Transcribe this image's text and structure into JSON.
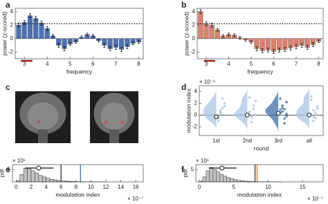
{
  "chart_data": [
    {
      "type": "bar",
      "panel_label": "a",
      "x": [
        2.75,
        3.0,
        3.25,
        3.5,
        3.75,
        4.0,
        4.25,
        4.5,
        4.75,
        5.0,
        5.25,
        5.5,
        5.75,
        6.0,
        6.25,
        6.5,
        6.75,
        7.0,
        7.25,
        7.5,
        7.75,
        8.0
      ],
      "values": [
        2.0,
        2.4,
        3.4,
        3.0,
        2.3,
        1.5,
        0.4,
        -1.0,
        -1.5,
        -0.8,
        -0.5,
        0.2,
        0.6,
        0.4,
        -0.3,
        -1.0,
        -1.5,
        -1.3,
        -1.6,
        -1.2,
        -0.7,
        -0.5
      ],
      "errors": [
        0.3,
        0.3,
        0.3,
        0.3,
        0.3,
        0.3,
        0.2,
        0.3,
        0.3,
        0.2,
        0.2,
        0.2,
        0.2,
        0.2,
        0.2,
        0.3,
        0.3,
        0.3,
        0.3,
        0.3,
        0.2,
        0.2
      ],
      "color": "#4a72b8",
      "xlim": [
        2.6,
        8.2
      ],
      "ylim": [
        -3,
        4.5
      ],
      "xticks": [
        3,
        4,
        5,
        6,
        7,
        8
      ],
      "yticks": [
        -2,
        0,
        2,
        4
      ],
      "xlabel": "frequency",
      "ylabel": "power (z-scored)",
      "threshold": 2.2,
      "sig_range": [
        2.85,
        3.35
      ],
      "sig_color": "#9b1c1c"
    },
    {
      "type": "bar",
      "panel_label": "b",
      "x": [
        2.75,
        3.0,
        3.25,
        3.5,
        3.75,
        4.0,
        4.25,
        4.5,
        4.75,
        5.0,
        5.25,
        5.5,
        5.75,
        6.0,
        6.25,
        6.5,
        6.75,
        7.0,
        7.25,
        7.5,
        7.75,
        8.0
      ],
      "values": [
        4.0,
        2.2,
        2.0,
        1.3,
        0.4,
        0.6,
        0.5,
        0.1,
        -0.2,
        -0.5,
        -1.5,
        -1.8,
        -1.7,
        -1.9,
        -1.7,
        -1.6,
        -1.4,
        -1.2,
        -1.0,
        -1.3,
        -0.9,
        -0.4
      ],
      "errors": [
        0.3,
        0.3,
        0.3,
        0.2,
        0.2,
        0.2,
        0.2,
        0.2,
        0.2,
        0.2,
        0.3,
        0.3,
        0.3,
        0.3,
        0.3,
        0.3,
        0.3,
        0.3,
        0.3,
        0.3,
        0.3,
        0.2
      ],
      "color": "#e2806a",
      "xlim": [
        2.6,
        8.2
      ],
      "ylim": [
        -3,
        4.5
      ],
      "xticks": [
        3,
        4,
        5,
        6,
        7,
        8
      ],
      "yticks": [
        -2,
        0,
        2,
        4
      ],
      "xlabel": "frequency",
      "ylabel": "power (z-scored)",
      "threshold": 2.2,
      "sig_range": [
        2.9,
        3.4
      ],
      "sig_color": "#9b1c1c"
    },
    {
      "type": "image",
      "panel_label": "c"
    },
    {
      "type": "violin",
      "panel_label": "d",
      "categories": [
        "1st",
        "2nd",
        "3rd",
        "all"
      ],
      "means": [
        -0.3,
        0.0,
        0.3,
        0.0
      ],
      "points": [
        [
          -0.3,
          0.5,
          1.2,
          2.0,
          -1.0,
          0.3,
          2.8,
          1.5,
          -0.5,
          0.8
        ],
        [
          0.2,
          -0.4,
          1.0,
          2.4,
          0.6,
          -1.2,
          1.6,
          0.1,
          3.0,
          -0.2
        ],
        [
          0.4,
          1.2,
          -0.6,
          2.2,
          0.9,
          1.6,
          -1.4,
          0.2,
          2.8,
          0.6,
          1.0,
          -0.2
        ],
        [
          0.1,
          0.8,
          -0.5,
          1.5,
          2.6,
          -1.0,
          0.4,
          1.1,
          3.2,
          -0.3
        ]
      ],
      "colors": [
        "#a9c6e4",
        "#a9c6e4",
        "#3f6fa8",
        "#a9c6e4"
      ],
      "ylim": [
        -3.5,
        5
      ],
      "yticks": [
        -2,
        0,
        2,
        4
      ],
      "xlabel": "round",
      "ylabel": "modulation index",
      "y_multiplier": "× 10⁻⁶"
    },
    {
      "type": "histogram",
      "panel_label": "e",
      "bins": [
        0,
        0.5,
        1,
        1.5,
        2,
        2.5,
        3,
        3.5,
        4,
        4.5,
        5,
        5.5,
        6,
        6.5,
        7,
        7.5,
        8,
        8.5,
        9,
        9.5,
        10,
        10.5,
        11,
        11.5,
        12
      ],
      "counts": [
        0.5,
        3.0,
        5.5,
        5.2,
        4.5,
        3.6,
        2.6,
        2.0,
        1.5,
        1.0,
        0.8,
        0.5,
        0.4,
        0.3,
        0.2,
        0.15,
        0.1,
        0.1,
        0.05,
        0.05,
        0.03,
        0.02,
        0.01,
        0.01
      ],
      "color": "#c4c4c4",
      "xlim": [
        -0.5,
        17
      ],
      "ylim": [
        0,
        7
      ],
      "xticks": [
        0,
        2,
        4,
        6,
        8,
        10,
        12,
        14,
        16
      ],
      "yticks": [
        5
      ],
      "xlabel": "modulation index",
      "ylabel": "pdf",
      "x_multiplier": "× 10⁻⁷",
      "y_multiplier": "× 10⁶",
      "null_mean": 3,
      "null_range": [
        1.2,
        5
      ],
      "vlines": [
        {
          "value": 6,
          "color": "#333333"
        },
        {
          "value": 8.6,
          "color": "#3a6fb0"
        }
      ]
    },
    {
      "type": "histogram",
      "panel_label": "f",
      "bins": [
        0,
        0.5,
        1,
        1.5,
        2,
        2.5,
        3,
        3.5,
        4,
        4.5,
        5,
        5.5,
        6,
        6.5,
        7,
        7.5,
        8,
        8.5,
        9,
        9.5,
        10,
        10.5,
        11,
        11.5,
        12
      ],
      "counts": [
        0.3,
        2.0,
        4.5,
        5.8,
        5.0,
        4.0,
        3.0,
        2.3,
        1.7,
        1.2,
        0.9,
        0.6,
        0.45,
        0.3,
        0.22,
        0.15,
        0.1,
        0.08,
        0.05,
        0.04,
        0.03,
        0.02,
        0.01,
        0.01
      ],
      "color": "#c4c4c4",
      "xlim": [
        -0.5,
        18
      ],
      "ylim": [
        0,
        7
      ],
      "xticks": [
        0,
        5,
        10,
        15
      ],
      "yticks": [
        5
      ],
      "xlabel": "modulation index",
      "ylabel": "pdf",
      "x_multiplier": "× 10⁻⁷",
      "y_multiplier": "× 10⁶",
      "null_mean": 3.3,
      "null_range": [
        1.4,
        5.4
      ],
      "vlines": [
        {
          "value": 8.1,
          "color": "#333333"
        },
        {
          "value": 8.4,
          "color": "#d9772e"
        }
      ]
    }
  ]
}
